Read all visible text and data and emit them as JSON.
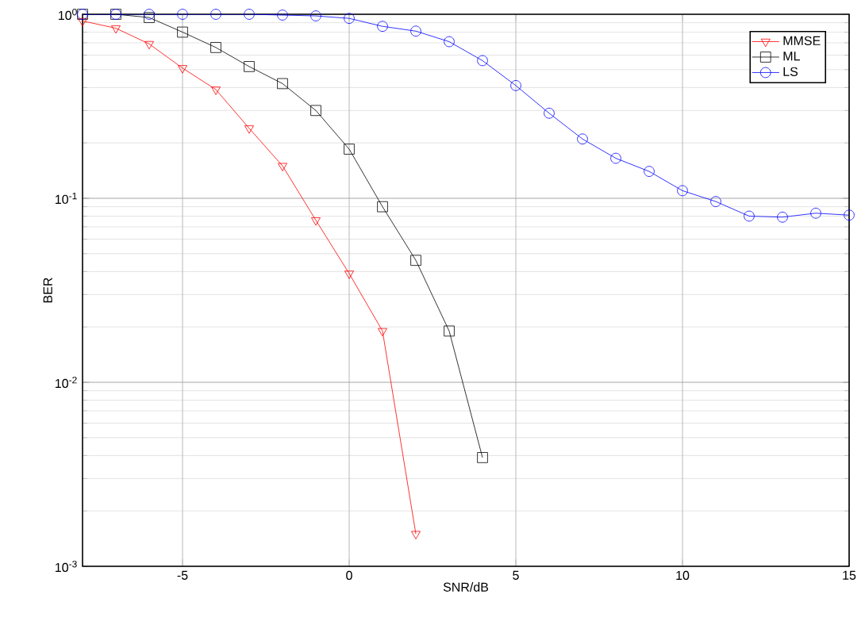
{
  "chart_data": {
    "type": "line",
    "xlabel": "SNR/dB",
    "ylabel": "BER",
    "log": "y",
    "x": [
      -8,
      -7,
      -6,
      -5,
      -4,
      -3,
      -2,
      -1,
      0,
      1,
      2,
      3,
      4,
      5,
      6,
      7,
      8,
      9,
      10,
      11,
      12,
      13,
      14,
      15
    ],
    "series": [
      {
        "name": "MMSE",
        "color": "#ff0000",
        "marker": "triangle",
        "x": [
          -8,
          -7,
          -6,
          -5,
          -4,
          -3,
          -2,
          -1,
          0,
          1,
          2
        ],
        "values": [
          0.92,
          0.84,
          0.69,
          0.51,
          0.39,
          0.24,
          0.15,
          0.076,
          0.039,
          0.019,
          0.0015
        ]
      },
      {
        "name": "ML",
        "color": "#000000",
        "marker": "square",
        "x": [
          -8,
          -7,
          -6,
          -5,
          -4,
          -3,
          -2,
          -1,
          0,
          1,
          2,
          3,
          4
        ],
        "values": [
          1.0,
          1.0,
          0.96,
          0.8,
          0.66,
          0.52,
          0.42,
          0.3,
          0.185,
          0.09,
          0.046,
          0.019,
          0.0039
        ]
      },
      {
        "name": "LS",
        "color": "#0000ff",
        "marker": "circle",
        "values": [
          1.0,
          1.0,
          1.0,
          1.0,
          1.0,
          1.0,
          0.99,
          0.98,
          0.95,
          0.86,
          0.81,
          0.71,
          0.56,
          0.41,
          0.29,
          0.21,
          0.165,
          0.14,
          0.11,
          0.096,
          0.08,
          0.079,
          0.083,
          0.081
        ]
      }
    ],
    "xlim": [
      -8,
      15
    ],
    "xticks": [
      -5,
      0,
      5,
      10,
      15
    ],
    "ylim": [
      0.001,
      1
    ],
    "yticks": [
      {
        "value": 0.001,
        "label": "10$^{-3}$"
      },
      {
        "value": 0.01,
        "label": "10$^{-2}$"
      },
      {
        "value": 0.1,
        "label": "10$^{-1}$"
      },
      {
        "value": 1,
        "label": "10$^{0}$"
      }
    ],
    "grid": true,
    "legend": "top right",
    "line_style": "solid"
  }
}
